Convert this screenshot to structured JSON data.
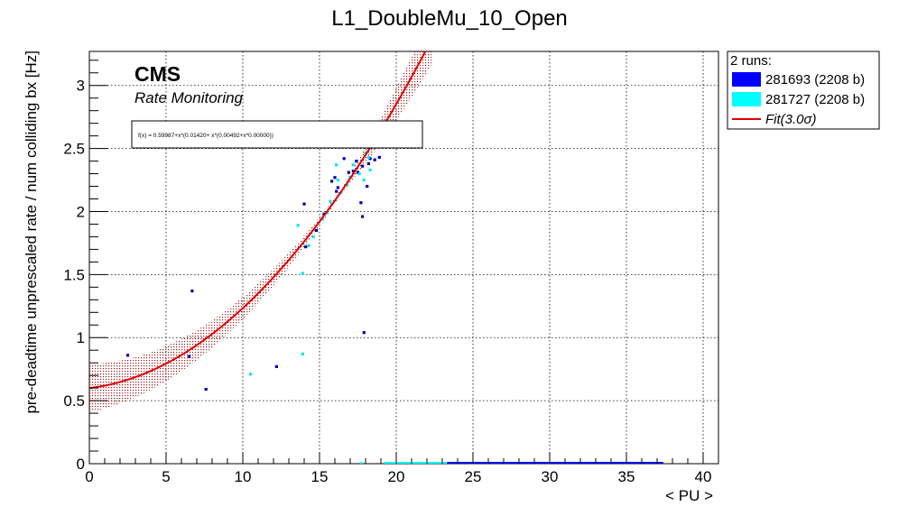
{
  "chart_data": {
    "type": "scatter",
    "title": "L1_DoubleMu_10_Open",
    "xlabel": "< PU >",
    "ylabel": "pre-deadtime unprescaled rate / num colliding bx [Hz]",
    "xlim": [
      0,
      41
    ],
    "ylim": [
      0,
      3.27
    ],
    "x_ticks": [
      0,
      5,
      10,
      15,
      20,
      25,
      30,
      35,
      40
    ],
    "y_ticks": [
      0,
      0.5,
      1,
      1.5,
      2,
      2.5,
      3
    ],
    "grid": true,
    "cms_label": "CMS",
    "cms_sublabel": "Rate Monitoring",
    "fit_formula_text": "f(x) = 0.59987+x*(0.01420+ x*(0.00492+x*0.00000))",
    "fit": {
      "coefficients": [
        0.59987,
        0.0142,
        0.00492,
        0.0
      ],
      "x_range": [
        0,
        22.3
      ],
      "band_halfwidth": [
        0.19,
        0.02,
        0.2
      ],
      "band_x": [
        0,
        16.5,
        22.3
      ],
      "line_color": "#dd0000",
      "band_color": "#a01818"
    },
    "legend": {
      "header": "2 runs:",
      "position": "right",
      "entries": [
        {
          "label": "281693 (2208 b)",
          "color": "#0000ff",
          "kind": "box"
        },
        {
          "label": "281727 (2208 b)",
          "color": "#00ffff",
          "kind": "box"
        },
        {
          "label": "Fit(3.0σ)",
          "color": "#dd0000",
          "kind": "line"
        }
      ]
    },
    "series": [
      {
        "name": "281693 (2208 b)",
        "color": "#0000aa",
        "points": [
          [
            2.5,
            0.86
          ],
          [
            6.5,
            0.85
          ],
          [
            6.7,
            1.37
          ],
          [
            7.6,
            0.59
          ],
          [
            12.2,
            0.77
          ],
          [
            14.0,
            2.06
          ],
          [
            15.8,
            2.24
          ],
          [
            16.0,
            2.27
          ],
          [
            16.6,
            2.42
          ],
          [
            17.0,
            2.27
          ],
          [
            17.2,
            2.32
          ],
          [
            17.5,
            2.31
          ],
          [
            17.8,
            2.36
          ],
          [
            17.7,
            2.07
          ],
          [
            17.8,
            1.96
          ],
          [
            17.9,
            1.04
          ],
          [
            18.1,
            2.2
          ],
          [
            18.2,
            2.38
          ],
          [
            18.3,
            2.42
          ],
          [
            18.6,
            2.41
          ],
          [
            18.9,
            2.43
          ],
          [
            14.1,
            1.72
          ],
          [
            14.8,
            1.85
          ],
          [
            15.3,
            1.98
          ],
          [
            16.2,
            2.19
          ],
          [
            16.9,
            2.31
          ],
          [
            17.4,
            2.4
          ],
          [
            16.1,
            2.16
          ]
        ],
        "zero_band": [
          23.3,
          37.4
        ]
      },
      {
        "name": "281727 (2208 b)",
        "color": "#00e8e8",
        "points": [
          [
            10.5,
            0.71
          ],
          [
            13.9,
            0.87
          ],
          [
            13.9,
            1.51
          ],
          [
            13.6,
            1.89
          ],
          [
            15.2,
            1.94
          ],
          [
            15.7,
            2.08
          ],
          [
            16.1,
            2.37
          ],
          [
            16.2,
            2.25
          ],
          [
            17.2,
            2.37
          ],
          [
            17.6,
            2.3
          ],
          [
            17.9,
            2.25
          ],
          [
            14.3,
            1.73
          ],
          [
            14.6,
            1.8
          ],
          [
            15.5,
            1.99
          ],
          [
            16.4,
            2.15
          ],
          [
            16.8,
            2.21
          ],
          [
            17.0,
            2.27
          ],
          [
            18.0,
            2.46
          ],
          [
            18.2,
            2.43
          ],
          [
            18.3,
            2.33
          ]
        ],
        "zero_band": [
          19.2,
          23.3
        ]
      }
    ]
  }
}
